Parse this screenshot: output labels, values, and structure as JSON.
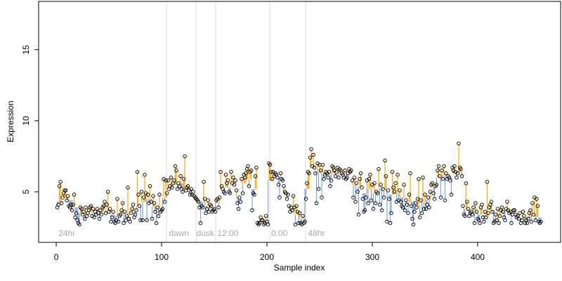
{
  "chart_data": {
    "type": "lollipop",
    "x_label": "Sample index",
    "y_label": "Expression",
    "xlim": [
      -16.7,
      478.7
    ],
    "ylim": [
      1.44,
      18.4
    ],
    "xticks": [
      0,
      100,
      200,
      300,
      400
    ],
    "yticks": [
      5,
      10,
      15
    ],
    "above_color": "#ffa500",
    "below_color": "#7ea6e0",
    "point_color": "#000000",
    "vlines": [
      104.7,
      132.7,
      151.3,
      202.7,
      236.7
    ],
    "annotations": [
      {
        "text": "24hr",
        "x": 2
      },
      {
        "text": "dawn",
        "x": 107
      },
      {
        "text": "dusk",
        "x": 133
      },
      {
        "text": "12:00",
        "x": 153
      },
      {
        "text": "0:00",
        "x": 204
      },
      {
        "text": "48hr",
        "x": 239
      }
    ],
    "x": [
      1,
      2,
      3,
      4,
      5,
      6,
      7,
      8,
      9,
      10,
      11,
      12,
      13,
      14,
      15,
      16,
      17,
      18,
      19,
      20,
      21,
      22,
      23,
      24,
      25,
      26,
      27,
      28,
      29,
      30,
      31,
      32,
      33,
      34,
      35,
      36,
      37,
      38,
      39,
      40,
      41,
      42,
      43,
      44,
      45,
      46,
      47,
      48,
      49,
      50,
      51,
      52,
      53,
      54,
      55,
      56,
      57,
      58,
      59,
      60,
      61,
      62,
      63,
      64,
      65,
      66,
      67,
      68,
      69,
      70,
      71,
      72,
      73,
      74,
      75,
      76,
      77,
      78,
      79,
      80,
      81,
      82,
      83,
      84,
      85,
      86,
      87,
      88,
      89,
      90,
      91,
      92,
      93,
      94,
      95,
      96,
      97,
      98,
      99,
      100,
      101,
      102,
      103,
      104,
      105,
      106,
      107,
      108,
      109,
      110,
      111,
      112,
      113,
      114,
      115,
      116,
      117,
      118,
      119,
      120,
      121,
      122,
      123,
      124,
      125,
      126,
      127,
      128,
      129,
      130,
      131,
      132,
      133,
      134,
      135,
      136,
      137,
      138,
      139,
      140,
      141,
      142,
      143,
      144,
      145,
      146,
      147,
      148,
      149,
      150,
      151,
      152,
      153,
      154,
      155,
      156,
      157,
      158,
      159,
      160,
      161,
      162,
      163,
      164,
      165,
      166,
      167,
      168,
      169,
      170,
      171,
      172,
      173,
      174,
      175,
      176,
      177,
      178,
      179,
      180,
      181,
      182,
      183,
      184,
      185,
      186,
      187,
      188,
      189,
      190,
      191,
      192,
      193,
      194,
      195,
      196,
      197,
      198,
      199,
      200,
      201,
      202,
      203,
      204,
      205,
      206,
      207,
      208,
      209,
      210,
      211,
      212,
      213,
      214,
      215,
      216,
      217,
      218,
      219,
      220,
      221,
      222,
      223,
      224,
      225,
      226,
      227,
      228,
      229,
      230,
      231,
      232,
      233,
      234,
      235,
      236,
      237,
      238,
      239,
      240,
      241,
      242,
      243,
      244,
      245,
      246,
      247,
      248,
      249,
      250,
      251,
      252,
      253,
      254,
      255,
      256,
      257,
      258,
      259,
      260,
      261,
      262,
      263,
      264,
      265,
      266,
      267,
      268,
      269,
      270,
      271,
      272,
      273,
      274,
      275,
      276,
      277,
      278,
      279,
      280,
      281,
      282,
      283,
      284,
      285,
      286,
      287,
      288,
      289,
      290,
      291,
      292,
      293,
      294,
      295,
      296,
      297,
      298,
      299,
      300,
      301,
      302,
      303,
      304,
      305,
      306,
      307,
      308,
      309,
      310,
      311,
      312,
      313,
      314,
      315,
      316,
      317,
      318,
      319,
      320,
      321,
      322,
      323,
      324,
      325,
      326,
      327,
      328,
      329,
      330,
      331,
      332,
      333,
      334,
      335,
      336,
      337,
      338,
      339,
      340,
      341,
      342,
      343,
      344,
      345,
      346,
      347,
      348,
      349,
      350,
      351,
      352,
      353,
      354,
      355,
      356,
      357,
      358,
      359,
      360,
      361,
      362,
      363,
      364,
      365,
      366,
      367,
      368,
      369,
      370,
      371,
      372,
      373,
      374,
      375,
      376,
      377,
      378,
      379,
      380,
      381,
      382,
      383,
      384,
      385,
      386,
      387,
      388,
      389,
      390,
      391,
      392,
      393,
      394,
      395,
      396,
      397,
      398,
      399,
      400,
      401,
      402,
      403,
      404,
      405,
      406,
      407,
      408,
      409,
      410,
      411,
      412,
      413,
      414,
      415,
      416,
      417,
      418,
      419,
      420,
      421,
      422,
      423,
      424,
      425,
      426,
      427,
      428,
      429,
      430,
      431,
      432,
      433,
      434,
      435,
      436,
      437,
      438,
      439,
      440,
      441,
      442,
      443,
      444,
      445,
      446,
      447,
      448,
      449,
      450,
      451,
      452,
      453,
      454,
      455,
      456,
      457,
      458,
      459,
      460
    ],
    "values": [
      3.9,
      4.1,
      5.4,
      5.7,
      4.2,
      4.6,
      4.9,
      5.1,
      5.1,
      4.4,
      4.7,
      4.0,
      3.9,
      4.1,
      3.7,
      4.1,
      4.8,
      3.2,
      3.5,
      3.0,
      2.8,
      2.7,
      3.9,
      3.8,
      3.4,
      3.6,
      3.1,
      3.9,
      3.3,
      3.5,
      3.7,
      3.9,
      4.0,
      3.3,
      3.8,
      3.2,
      3.6,
      3.4,
      3.8,
      3.5,
      3.1,
      3.7,
      3.4,
      3.9,
      4.0,
      4.3,
      3.5,
      4.1,
      5.0,
      3.6,
      3.8,
      2.9,
      3.2,
      3.6,
      2.9,
      2.8,
      3.0,
      4.5,
      2.9,
      3.3,
      3.4,
      3.7,
      4.2,
      2.8,
      3.6,
      3.0,
      3.3,
      5.3,
      3.1,
      2.9,
      3.5,
      3.8,
      4.1,
      3.2,
      3.4,
      3.7,
      6.4,
      4.8,
      4.0,
      3.0,
      5.0,
      3.0,
      4.6,
      6.2,
      4.9,
      3.0,
      4.8,
      4.2,
      5.4,
      4.3,
      3.1,
      4.7,
      4.2,
      3.6,
      2.8,
      3.9,
      3.3,
      4.8,
      3.6,
      3.7,
      3.8,
      5.9,
      4.3,
      5.8,
      4.9,
      5.8,
      5.2,
      5.4,
      6.0,
      5.3,
      5.6,
      5.8,
      6.8,
      6.5,
      5.2,
      5.6,
      5.4,
      6.1,
      5.2,
      5.0,
      5.9,
      7.5,
      5.1,
      5.3,
      5.4,
      5.1,
      4.8,
      5.2,
      4.8,
      5.0,
      4.7,
      4.6,
      4.5,
      4.4,
      4.3,
      3.9,
      2.8,
      4.0,
      3.9,
      5.7,
      4.5,
      3.5,
      3.8,
      4.4,
      3.6,
      4.1,
      4.0,
      3.6,
      3.7,
      3.8,
      3.6,
      4.4,
      4.5,
      3.9,
      4.6,
      6.4,
      5.4,
      5.2,
      5.0,
      4.9,
      6.2,
      5.6,
      5.8,
      5.0,
      4.9,
      6.4,
      5.6,
      6.0,
      5.5,
      5.8,
      5.1,
      4.2,
      3.8,
      4.6,
      4.3,
      5.9,
      4.9,
      6.2,
      6.0,
      6.3,
      6.6,
      6.8,
      5.4,
      6.4,
      6.5,
      3.7,
      4.9,
      4.8,
      6.1,
      6.7,
      2.8,
      2.7,
      2.8,
      3.2,
      3.0,
      3.0,
      2.7,
      2.8,
      3.3,
      2.9,
      2.7,
      7.0,
      6.9,
      6.4,
      5.9,
      6.4,
      6.1,
      6.3,
      6.2,
      6.0,
      5.5,
      4.6,
      6.3,
      5.9,
      5.8,
      5.4,
      5.0,
      4.9,
      4.5,
      4.8,
      4.0,
      3.6,
      3.9,
      3.7,
      4.7,
      3.9,
      2.7,
      4.0,
      3.6,
      2.8,
      3.5,
      2.8,
      2.7,
      3.3,
      2.8,
      2.9,
      4.5,
      5.6,
      6.4,
      6.3,
      7.4,
      8.0,
      6.8,
      7.6,
      6.7,
      6.3,
      4.2,
      7.0,
      5.2,
      6.9,
      6.5,
      4.6,
      6.9,
      5.9,
      6.2,
      6.4,
      6.3,
      6.0,
      6.4,
      5.4,
      5.8,
      6.8,
      6.7,
      6.5,
      6.1,
      6.4,
      6.7,
      6.0,
      6.6,
      6.5,
      6.3,
      6.2,
      6.0,
      6.5,
      5.9,
      6.0,
      6.3,
      6.6,
      6.4,
      6.5,
      5.8,
      4.6,
      6.0,
      4.3,
      5.6,
      5.0,
      3.4,
      5.9,
      6.3,
      5.3,
      4.5,
      3.6,
      3.7,
      4.6,
      5.8,
      4.2,
      5.9,
      6.2,
      4.4,
      5.5,
      3.8,
      5.6,
      4.2,
      5.0,
      4.9,
      6.6,
      4.1,
      5.5,
      3.7,
      5.2,
      4.6,
      7.2,
      6.1,
      2.9,
      5.1,
      4.5,
      2.8,
      3.5,
      6.4,
      5.3,
      5.0,
      5.6,
      4.3,
      6.2,
      4.4,
      5.1,
      4.3,
      4.0,
      3.9,
      5.5,
      3.7,
      4.4,
      4.1,
      3.5,
      4.8,
      6.3,
      4.0,
      3.1,
      2.7,
      3.6,
      4.2,
      3.9,
      4.5,
      5.9,
      3.2,
      4.4,
      3.5,
      6.0,
      3.8,
      4.8,
      3.8,
      4.1,
      4.6,
      3.9,
      5.0,
      5.5,
      5.6,
      4.9,
      4.5,
      5.4,
      5.5,
      6.5,
      6.8,
      6.1,
      4.6,
      6.5,
      5.9,
      6.8,
      4.4,
      6.3,
      5.9,
      6.1,
      6.0,
      5.8,
      4.8,
      6.7,
      6.5,
      6.8,
      6.4,
      6.0,
      6.3,
      8.4,
      6.7,
      6.6,
      6.1,
      4.0,
      3.4,
      3.3,
      5.6,
      4.3,
      3.8,
      3.3,
      3.5,
      3.6,
      3.4,
      3.9,
      2.8,
      4.2,
      3.6,
      3.1,
      3.0,
      2.8,
      3.9,
      4.1,
      3.2,
      2.9,
      3.6,
      3.2,
      5.7,
      3.5,
      3.9,
      4.1,
      4.3,
      3.6,
      2.8,
      2.9,
      3.4,
      3.0,
      3.8,
      2.8,
      3.3,
      3.7,
      3.9,
      3.6,
      3.2,
      3.0,
      3.8,
      4.3,
      3.7,
      3.5,
      3.6,
      2.8,
      3.4,
      3.7,
      3.7,
      3.4,
      3.2,
      3.3,
      3.1,
      3.5,
      2.8,
      3.0,
      3.6,
      3.3,
      2.8,
      3.0,
      2.8,
      3.1,
      3.5,
      3.7,
      2.9,
      4.2,
      3.4,
      4.6,
      3.0,
      4.5,
      4.0,
      2.9,
      2.8,
      2.9
    ],
    "baseline": [
      4.3,
      4.3,
      4.3,
      4.3,
      4.3,
      4.6,
      4.6,
      4.6,
      4.6,
      4.6,
      4.4,
      4.4,
      4.4,
      4.4,
      4.4,
      3.9,
      3.9,
      3.9,
      3.9,
      3.9,
      3.5,
      3.5,
      3.5,
      3.5,
      3.5,
      3.4,
      3.4,
      3.4,
      3.4,
      3.4,
      3.6,
      3.6,
      3.6,
      3.6,
      3.6,
      3.5,
      3.5,
      3.5,
      3.5,
      3.5,
      3.6,
      3.6,
      3.6,
      3.6,
      3.6,
      3.8,
      3.8,
      3.8,
      3.8,
      3.8,
      3.4,
      3.4,
      3.4,
      3.4,
      3.4,
      3.3,
      3.3,
      3.3,
      3.3,
      3.3,
      3.5,
      3.5,
      3.5,
      3.5,
      3.5,
      3.2,
      3.2,
      3.2,
      3.2,
      3.2,
      3.6,
      3.6,
      3.6,
      3.6,
      3.6,
      4.0,
      4.0,
      4.0,
      4.0,
      4.0,
      4.3,
      4.3,
      4.3,
      4.3,
      4.3,
      4.5,
      4.5,
      4.5,
      4.5,
      4.5,
      3.9,
      3.9,
      3.9,
      3.9,
      3.9,
      3.8,
      3.8,
      3.8,
      3.8,
      3.8,
      4.6,
      4.6,
      4.6,
      4.6,
      4.6,
      5.4,
      5.4,
      5.4,
      5.4,
      5.4,
      5.5,
      5.5,
      5.5,
      5.5,
      5.5,
      5.6,
      5.6,
      5.6,
      5.6,
      5.6,
      5.2,
      5.2,
      5.2,
      5.2,
      5.2,
      5.0,
      5.0,
      5.0,
      5.0,
      5.0,
      4.4,
      4.4,
      4.4,
      4.4,
      4.4,
      4.3,
      4.3,
      4.3,
      4.3,
      4.3,
      4.0,
      4.0,
      4.0,
      4.0,
      4.0,
      3.8,
      3.8,
      3.8,
      3.8,
      3.8,
      4.2,
      4.2,
      4.2,
      4.2,
      4.2,
      5.2,
      5.2,
      5.2,
      5.2,
      5.2,
      5.3,
      5.3,
      5.3,
      5.3,
      5.3,
      5.6,
      5.6,
      5.6,
      5.6,
      5.6,
      4.6,
      4.6,
      4.6,
      4.6,
      4.6,
      5.6,
      5.6,
      5.6,
      5.6,
      5.6,
      5.9,
      5.9,
      5.9,
      5.9,
      5.9,
      5.2,
      5.2,
      5.2,
      5.2,
      5.2,
      3.0,
      3.0,
      3.0,
      3.0,
      3.0,
      2.9,
      2.9,
      2.9,
      2.9,
      2.9,
      5.8,
      5.8,
      5.8,
      5.8,
      5.8,
      6.2,
      6.2,
      6.2,
      6.2,
      6.2,
      6.0,
      6.0,
      6.0,
      6.0,
      6.0,
      4.9,
      4.9,
      4.9,
      4.9,
      4.9,
      3.8,
      3.8,
      3.8,
      3.8,
      3.8,
      3.4,
      3.4,
      3.4,
      3.4,
      3.4,
      3.1,
      3.1,
      3.1,
      3.1,
      3.1,
      5.2,
      5.2,
      5.2,
      5.2,
      5.2,
      6.8,
      6.8,
      6.8,
      6.8,
      6.8,
      6.4,
      6.4,
      6.4,
      6.4,
      6.4,
      6.3,
      6.3,
      6.3,
      6.3,
      6.3,
      6.2,
      6.2,
      6.2,
      6.2,
      6.2,
      6.3,
      6.3,
      6.3,
      6.3,
      6.3,
      6.4,
      6.4,
      6.4,
      6.4,
      6.4,
      6.2,
      6.2,
      6.2,
      6.2,
      6.2,
      6.3,
      6.3,
      6.3,
      6.3,
      6.3,
      5.5,
      5.5,
      5.5,
      5.5,
      5.5,
      5.3,
      5.3,
      5.3,
      5.3,
      5.3,
      4.9,
      4.9,
      4.9,
      4.9,
      4.9,
      5.2,
      5.2,
      5.2,
      5.2,
      5.2,
      4.9,
      4.9,
      4.9,
      4.9,
      4.9,
      5.3,
      5.3,
      5.3,
      5.3,
      5.3,
      5.1,
      5.1,
      5.1,
      5.1,
      5.1,
      4.8,
      4.8,
      4.8,
      4.8,
      4.8,
      4.9,
      4.9,
      4.9,
      4.9,
      4.9,
      4.6,
      4.6,
      4.6,
      4.6,
      4.6,
      4.2,
      4.2,
      4.2,
      4.2,
      4.2,
      4.3,
      4.3,
      4.3,
      4.3,
      4.3,
      4.0,
      4.0,
      4.0,
      4.0,
      4.0,
      4.3,
      4.3,
      4.3,
      4.3,
      4.3,
      4.4,
      4.4,
      4.4,
      4.4,
      4.4,
      5.3,
      5.3,
      5.3,
      5.3,
      5.3,
      6.0,
      6.0,
      6.0,
      6.0,
      6.0,
      6.2,
      6.2,
      6.2,
      6.2,
      6.2,
      6.0,
      6.0,
      6.0,
      6.0,
      6.0,
      6.3,
      6.3,
      6.3,
      6.3,
      6.3,
      6.4,
      6.4,
      6.4,
      6.4,
      6.4,
      3.8,
      3.8,
      3.8,
      3.8,
      3.8,
      3.6,
      3.6,
      3.6,
      3.6,
      3.6,
      3.5,
      3.5,
      3.5,
      3.5,
      3.5,
      3.4,
      3.4,
      3.4,
      3.4,
      3.4,
      3.3,
      3.3,
      3.3,
      3.3,
      3.3,
      3.7,
      3.7,
      3.7,
      3.7,
      3.7,
      3.1,
      3.1,
      3.1,
      3.1,
      3.1,
      3.5,
      3.5,
      3.5,
      3.5,
      3.5,
      3.6,
      3.6,
      3.6,
      3.6,
      3.6,
      3.5,
      3.5,
      3.5,
      3.5,
      3.5,
      3.3,
      3.3,
      3.3,
      3.3,
      3.3,
      3.1,
      3.1,
      3.1,
      3.1,
      3.1,
      3.2,
      3.2,
      3.2,
      3.2,
      3.2,
      3.4,
      3.4,
      3.4,
      3.4,
      3.4,
      3.2,
      3.2,
      3.2,
      3.2,
      3.2
    ]
  }
}
